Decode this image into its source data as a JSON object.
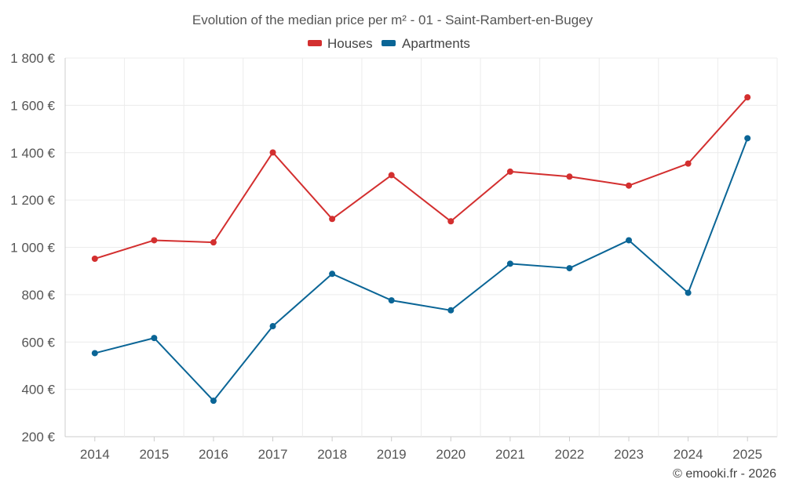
{
  "chart_data": {
    "type": "line",
    "title": "Evolution of the median price per m² - 01 - Saint-Rambert-en-Bugey",
    "xlabel": "",
    "ylabel": "",
    "categories": [
      "2014",
      "2015",
      "2016",
      "2017",
      "2018",
      "2019",
      "2020",
      "2021",
      "2022",
      "2023",
      "2024",
      "2025"
    ],
    "ylim": [
      200,
      1800
    ],
    "y_ticks": [
      200,
      400,
      600,
      800,
      1000,
      1200,
      1400,
      1600,
      1800
    ],
    "y_tick_labels": [
      "200 €",
      "400 €",
      "600 €",
      "800 €",
      "1 000 €",
      "1 200 €",
      "1 400 €",
      "1 600 €",
      "1 800 €"
    ],
    "grid": true,
    "legend_position": "top-center",
    "series": [
      {
        "name": "Houses",
        "color": "#d32f2f",
        "values": [
          952,
          1030,
          1021,
          1401,
          1120,
          1305,
          1110,
          1320,
          1299,
          1261,
          1354,
          1634
        ]
      },
      {
        "name": "Apartments",
        "color": "#0a6596",
        "values": [
          553,
          617,
          352,
          667,
          888,
          776,
          734,
          931,
          912,
          1030,
          808,
          1461
        ]
      }
    ]
  },
  "credit": "© emooki.fr - 2026"
}
